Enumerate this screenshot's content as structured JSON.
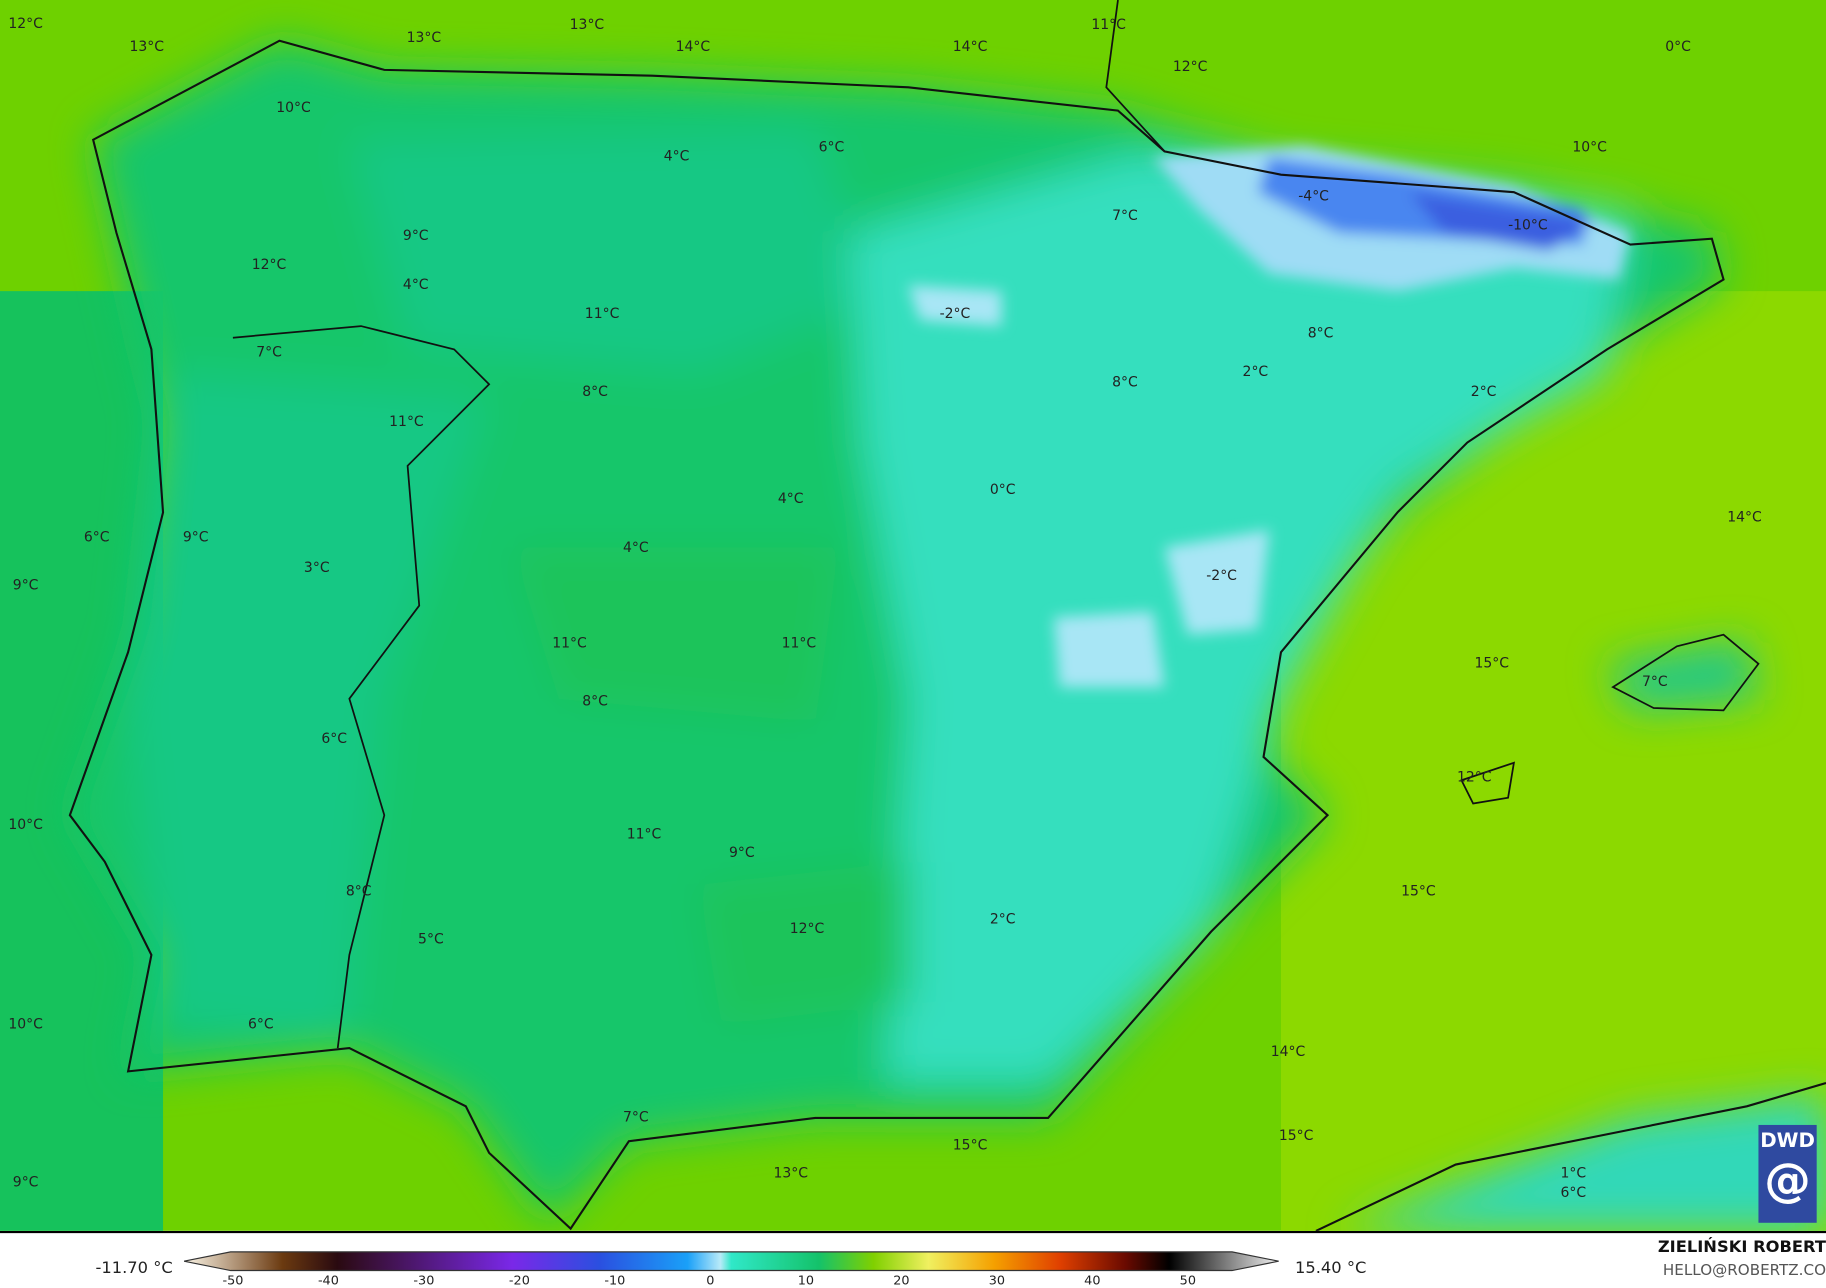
{
  "map": {
    "variable": "temperature",
    "labels": [
      "12°C",
      "13°C",
      "13°C",
      "13°C",
      "14°C",
      "14°C",
      "11°C",
      "12°C",
      "0°C",
      "10°C",
      "4°C",
      "6°C",
      "10°C",
      "-4°C",
      "7°C",
      "-10°C",
      "9°C",
      "12°C",
      "4°C",
      "-2°C",
      "11°C",
      "8°C",
      "7°C",
      "2°C",
      "8°C",
      "8°C",
      "2°C",
      "11°C",
      "0°C",
      "4°C",
      "14°C",
      "6°C",
      "9°C",
      "4°C",
      "-2°C",
      "3°C",
      "9°C",
      "11°C",
      "11°C",
      "15°C",
      "7°C",
      "8°C",
      "6°C",
      "12°C",
      "10°C",
      "11°C",
      "9°C",
      "15°C",
      "8°C",
      "2°C",
      "12°C",
      "5°C",
      "10°C",
      "6°C",
      "14°C",
      "7°C",
      "15°C",
      "15°C",
      "13°C",
      "9°C",
      "1°C",
      "6°C"
    ],
    "colors": {
      "sea_north": "#6ed100",
      "sea_east": "#8cd900",
      "land_warm": "#1ec25a",
      "land_cool": "#14c98c",
      "land_cold": "#3ae3c4",
      "frost": "#a8e6f5",
      "deep_cold": "#3a6fe8"
    }
  },
  "logo": {
    "text": "DWD"
  },
  "footer": {
    "min_value": "-11.70 °C",
    "max_value": "15.40 °C",
    "colorbar_ticks": [
      "-50",
      "-40",
      "-30",
      "-20",
      "-10",
      "0",
      "10",
      "20",
      "30",
      "40",
      "50"
    ],
    "author": "ZIELIŃSKI ROBERT",
    "email": "HELLO@ROBERTZ.CO"
  }
}
